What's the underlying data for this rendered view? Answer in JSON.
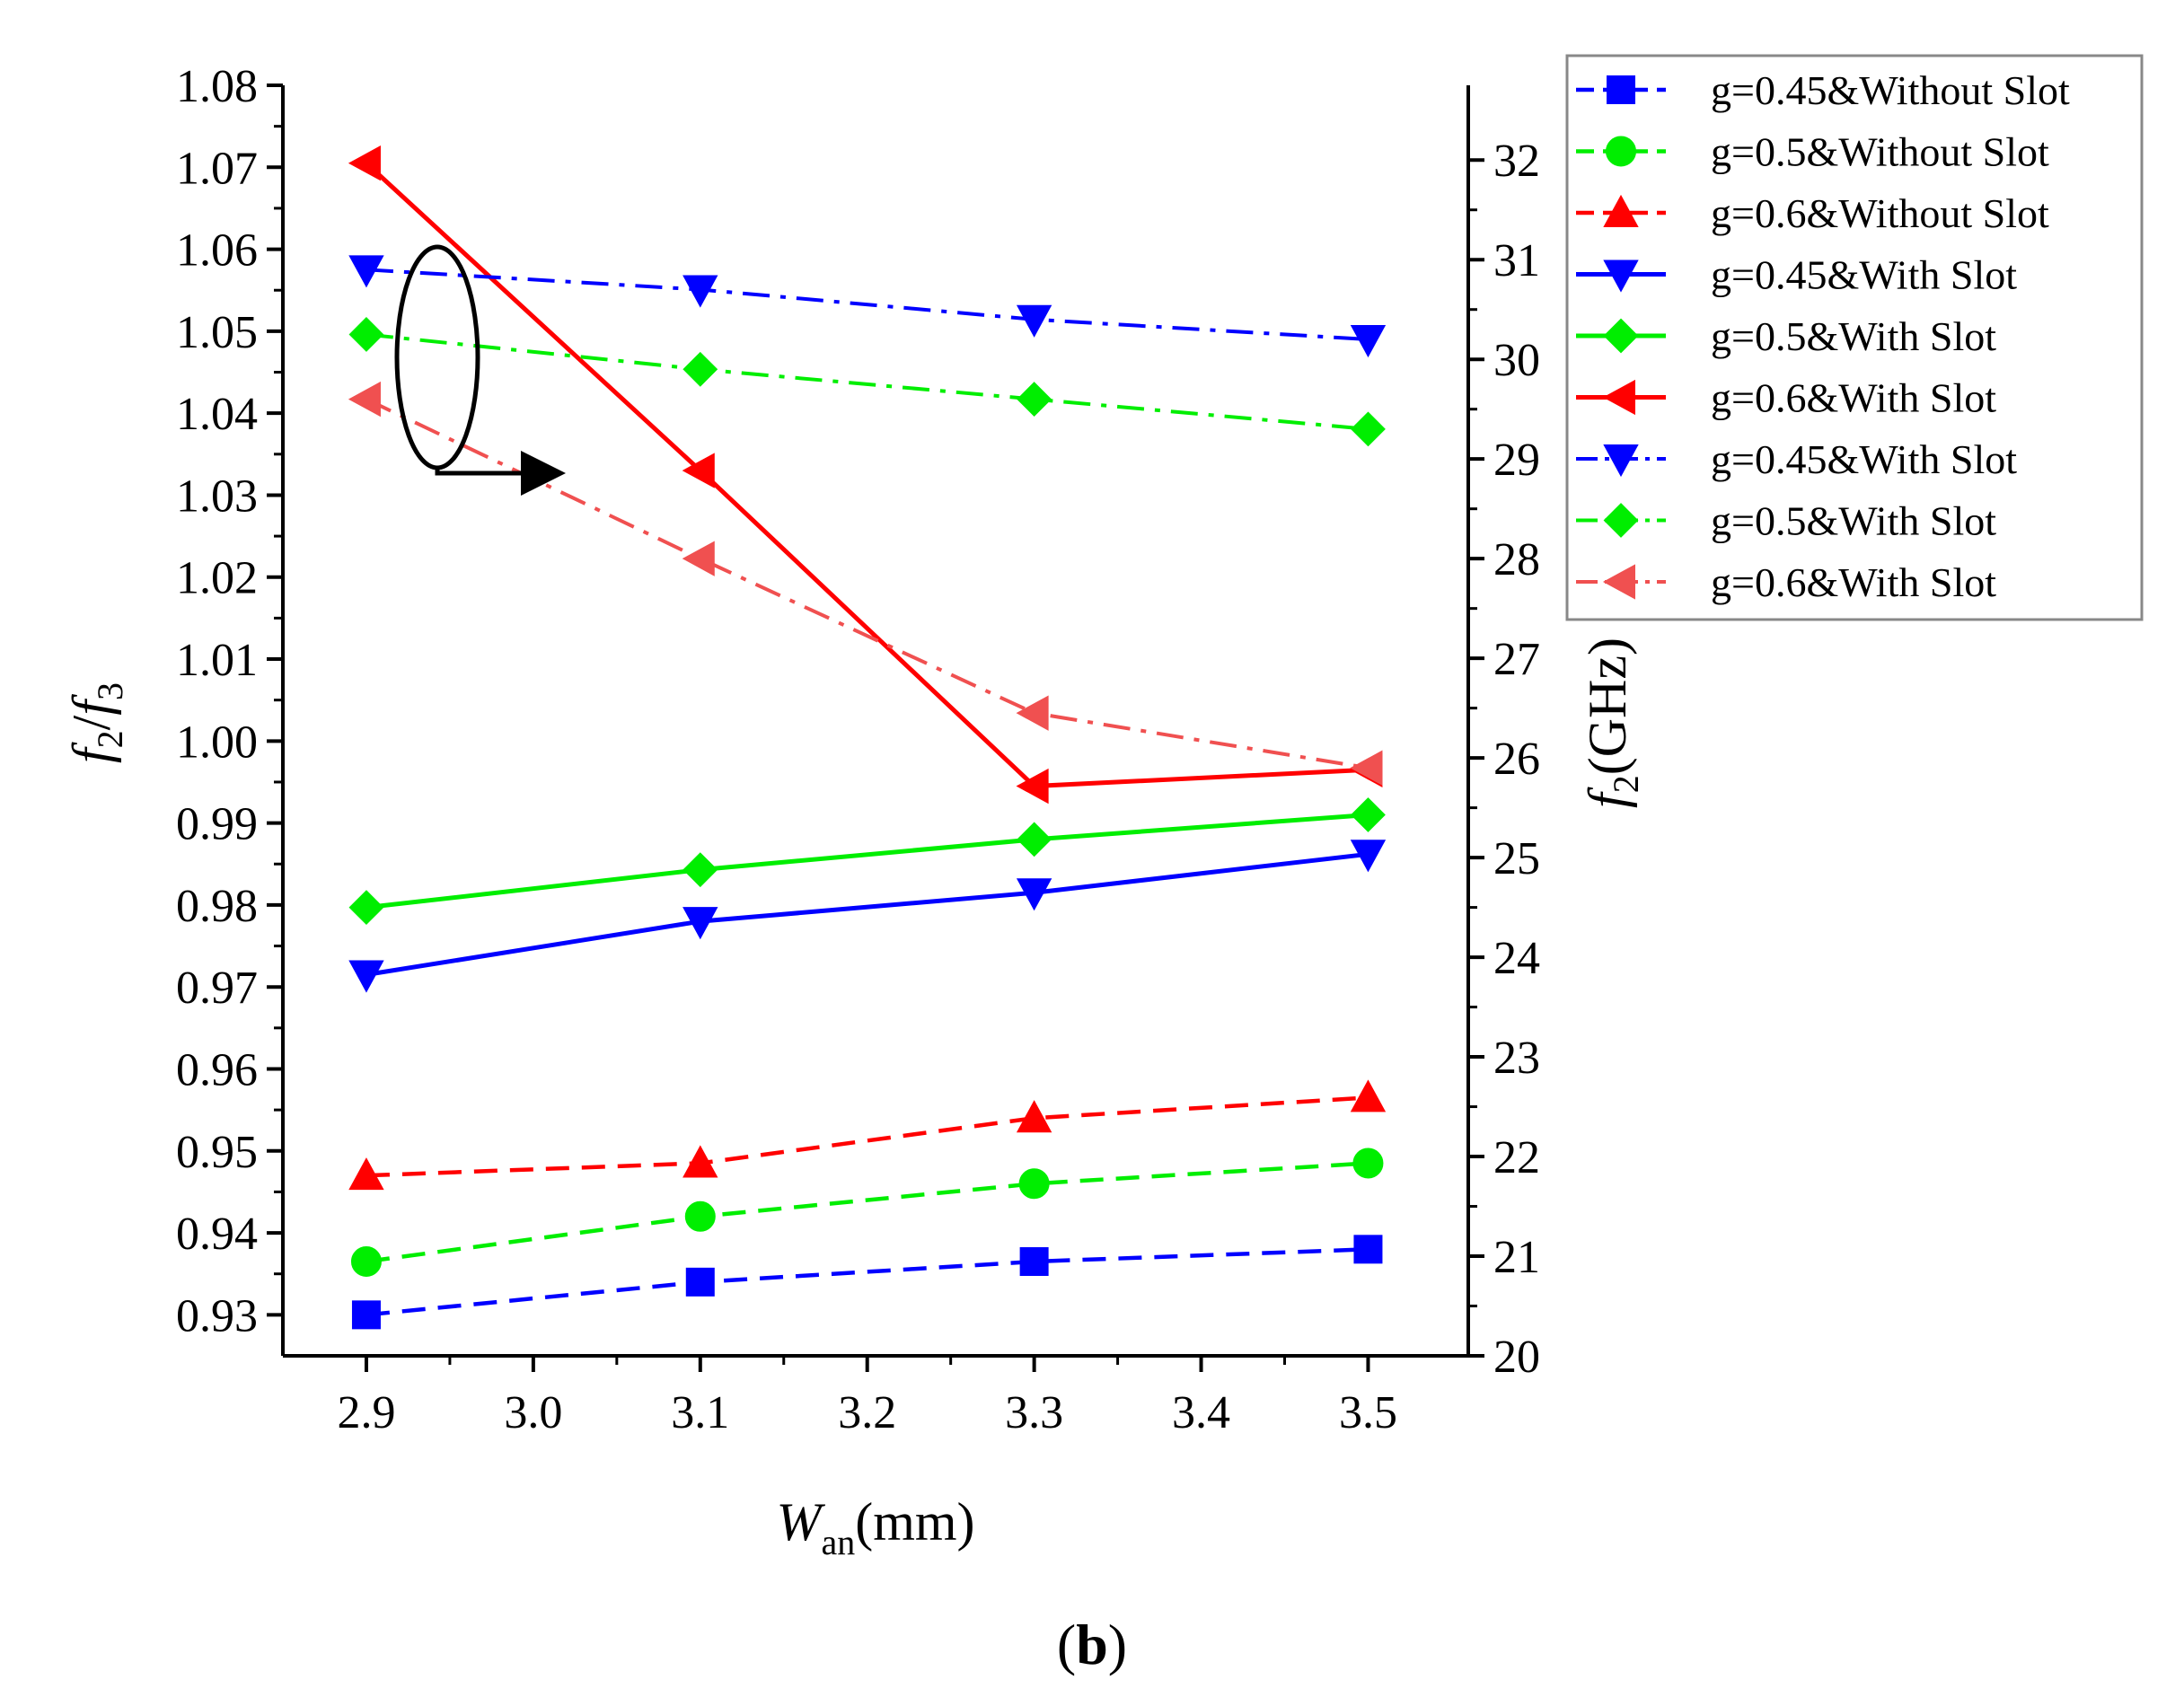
{
  "chart_data": {
    "type": "line",
    "title": "",
    "panel_label": {
      "open": "(",
      "letter": "b",
      "close": ")"
    },
    "x": [
      2.9,
      3.1,
      3.3,
      3.5
    ],
    "xlim": [
      2.85,
      3.56
    ],
    "xticks": [
      "2.9",
      "3.0",
      "3.1",
      "3.2",
      "3.3",
      "3.4",
      "3.5"
    ],
    "xlabel": {
      "main": "W",
      "sub": "an",
      "unit": "(mm)"
    },
    "ylabel_left": {
      "f": "f",
      "sub2": "2",
      "slash": "/",
      "f3": "f",
      "sub3": "3"
    },
    "ylim_left": [
      0.925,
      1.08
    ],
    "yticks_left": [
      "0.93",
      "0.94",
      "0.95",
      "0.96",
      "0.97",
      "0.98",
      "0.99",
      "1.00",
      "1.01",
      "1.02",
      "1.03",
      "1.04",
      "1.05",
      "1.06",
      "1.07",
      "1.08"
    ],
    "ylabel_right": {
      "f": "f",
      "sub": "2",
      "unit": "(GHz)"
    },
    "ylim_right": [
      20,
      32.75
    ],
    "yticks_right": [
      "20",
      "21",
      "22",
      "23",
      "24",
      "25",
      "26",
      "27",
      "28",
      "29",
      "30",
      "31",
      "32"
    ],
    "series": [
      {
        "name": "g=0.45&Without Slot",
        "axis": "left",
        "color": "#0000ff",
        "style": "dashed",
        "marker": "square",
        "values": [
          0.93,
          0.934,
          0.9365,
          0.938
        ]
      },
      {
        "name": "g=0.5&Without Slot",
        "axis": "left",
        "color": "#00ee00",
        "style": "dashed",
        "marker": "circle",
        "values": [
          0.9365,
          0.942,
          0.946,
          0.9485
        ]
      },
      {
        "name": "g=0.6&Without Slot",
        "axis": "left",
        "color": "#ff0000",
        "style": "dashed",
        "marker": "triangle-up",
        "values": [
          0.947,
          0.9485,
          0.954,
          0.9565
        ]
      },
      {
        "name": "g=0.45&With Slot",
        "axis": "left",
        "color": "#0000ff",
        "style": "solid",
        "marker": "triangle-down",
        "values": [
          0.9715,
          0.978,
          0.9815,
          0.9862
        ]
      },
      {
        "name": "g=0.5&With Slot",
        "axis": "left",
        "color": "#00ee00",
        "style": "solid",
        "marker": "diamond",
        "values": [
          0.9797,
          0.9843,
          0.988,
          0.991
        ]
      },
      {
        "name": "g=0.6&With Slot",
        "axis": "left",
        "color": "#ff0000",
        "style": "solid",
        "marker": "triangle-left",
        "values": [
          1.0705,
          1.033,
          0.9945,
          0.9965
        ]
      },
      {
        "name": "g=0.45&With Slot",
        "axis": "right",
        "color": "#0000ff",
        "style": "dashdot",
        "marker": "triangle-down",
        "values": [
          30.9,
          30.7,
          30.4,
          30.2
        ]
      },
      {
        "name": "g=0.5&With Slot",
        "axis": "right",
        "color": "#00ee00",
        "style": "dashdot",
        "marker": "diamond",
        "values": [
          30.25,
          29.9,
          29.6,
          29.3
        ]
      },
      {
        "name": "g=0.6&With Slot",
        "axis": "right",
        "color": "#f05050",
        "style": "dashdot",
        "marker": "triangle-left",
        "values": [
          29.6,
          28.0,
          26.45,
          25.9
        ]
      }
    ],
    "legend_position": "top-right"
  }
}
